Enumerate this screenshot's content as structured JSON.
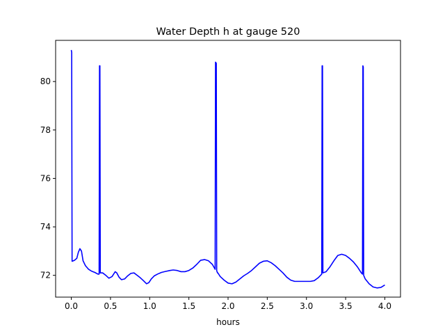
{
  "chart_data": {
    "type": "line",
    "title": "Water Depth h at gauge 520",
    "xlabel": "hours",
    "ylabel": "",
    "xlim": [
      -0.2,
      4.2
    ],
    "ylim": [
      71.1,
      81.7
    ],
    "grid": false,
    "legend": "none",
    "x_ticks": [
      0.0,
      0.5,
      1.0,
      1.5,
      2.0,
      2.5,
      3.0,
      3.5,
      4.0
    ],
    "x_tick_labels": [
      "0.0",
      "0.5",
      "1.0",
      "1.5",
      "2.0",
      "2.5",
      "3.0",
      "3.5",
      "4.0"
    ],
    "y_ticks": [
      72,
      74,
      76,
      78,
      80
    ],
    "y_tick_labels": [
      "72",
      "74",
      "76",
      "78",
      "80"
    ],
    "colors": {
      "line": "#0000ff",
      "axes": "#000000",
      "background": "#ffffff"
    },
    "series": [
      {
        "x": [
          0.0,
          0.005,
          0.01,
          0.01,
          0.04,
          0.07,
          0.09,
          0.11,
          0.13,
          0.15,
          0.18,
          0.22,
          0.26,
          0.3,
          0.34,
          0.355,
          0.36,
          0.365,
          0.37,
          0.4,
          0.44,
          0.48,
          0.52,
          0.56,
          0.58,
          0.61,
          0.64,
          0.68,
          0.72,
          0.76,
          0.8,
          0.84,
          0.88,
          0.92,
          0.96,
          0.99,
          1.02,
          1.06,
          1.1,
          1.15,
          1.2,
          1.26,
          1.3,
          1.35,
          1.4,
          1.45,
          1.5,
          1.55,
          1.6,
          1.65,
          1.7,
          1.75,
          1.8,
          1.835,
          1.84,
          1.845,
          1.85,
          1.855,
          1.86,
          1.865,
          1.87,
          1.9,
          1.95,
          2.0,
          2.05,
          2.1,
          2.15,
          2.2,
          2.25,
          2.3,
          2.35,
          2.4,
          2.45,
          2.5,
          2.55,
          2.6,
          2.65,
          2.7,
          2.75,
          2.8,
          2.85,
          2.9,
          2.95,
          3.0,
          3.05,
          3.1,
          3.15,
          3.195,
          3.2,
          3.205,
          3.21,
          3.25,
          3.3,
          3.35,
          3.4,
          3.45,
          3.5,
          3.55,
          3.6,
          3.65,
          3.7,
          3.715,
          3.72,
          3.725,
          3.73,
          3.75,
          3.8,
          3.85,
          3.9,
          3.95,
          4.0
        ],
        "values": [
          81.3,
          81.2,
          72.58,
          72.58,
          72.62,
          72.7,
          72.95,
          73.1,
          73.0,
          72.6,
          72.4,
          72.25,
          72.17,
          72.12,
          72.05,
          72.05,
          80.65,
          80.65,
          72.1,
          72.1,
          72.0,
          71.88,
          71.95,
          72.15,
          72.1,
          71.92,
          71.82,
          71.85,
          71.98,
          72.08,
          72.1,
          72.0,
          71.9,
          71.78,
          71.65,
          71.7,
          71.85,
          71.98,
          72.05,
          72.12,
          72.16,
          72.2,
          72.22,
          72.2,
          72.15,
          72.15,
          72.2,
          72.3,
          72.45,
          72.62,
          72.65,
          72.6,
          72.45,
          72.25,
          80.8,
          80.78,
          80.75,
          72.2,
          72.15,
          72.1,
          72.1,
          71.95,
          71.8,
          71.68,
          71.65,
          71.72,
          71.85,
          71.98,
          72.08,
          72.2,
          72.35,
          72.5,
          72.58,
          72.6,
          72.52,
          72.4,
          72.25,
          72.1,
          71.92,
          71.8,
          71.75,
          71.75,
          71.75,
          71.75,
          71.75,
          71.78,
          71.9,
          72.05,
          80.65,
          80.65,
          72.1,
          72.15,
          72.35,
          72.6,
          72.82,
          72.87,
          72.82,
          72.7,
          72.55,
          72.35,
          72.1,
          72.05,
          80.65,
          80.6,
          72.0,
          71.85,
          71.65,
          71.52,
          71.48,
          71.5,
          71.6
        ]
      }
    ]
  }
}
